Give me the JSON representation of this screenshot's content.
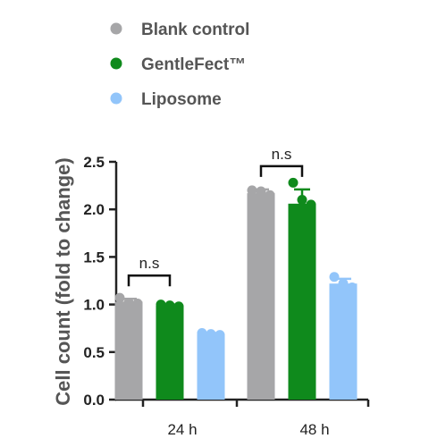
{
  "chart_data": {
    "type": "bar",
    "categories": [
      "24 h",
      "48 h"
    ],
    "ylabel": "Cell count (fold to change)",
    "xlabel": "",
    "ylim": [
      0,
      2.5
    ],
    "yticks": [
      "0.0",
      "0.5",
      "1.0",
      "1.5",
      "2.0",
      "2.5"
    ],
    "legend_position": "top-center",
    "series": [
      {
        "name": "Blank control",
        "color": "#a6a6a8",
        "values": [
          1.03,
          2.17
        ],
        "errors": [
          0.03,
          0.04
        ],
        "points": [
          [
            1.07,
            1.02,
            1.01
          ],
          [
            2.2,
            2.19,
            2.15
          ]
        ]
      },
      {
        "name": "GentleFect™",
        "color": "#0f8a1c",
        "values": [
          0.99,
          2.06
        ],
        "errors": [
          0.01,
          0.15
        ],
        "points": [
          [
            1.0,
            0.99,
            0.98
          ],
          [
            2.28,
            2.1,
            2.05
          ]
        ]
      },
      {
        "name": "Liposome",
        "color": "#92c5fa",
        "values": [
          0.69,
          1.22
        ],
        "errors": [
          0.01,
          0.05
        ],
        "points": [
          [
            0.7,
            0.69,
            0.68
          ],
          [
            1.29,
            1.22,
            1.18
          ]
        ]
      }
    ],
    "annotations": [
      {
        "text": "n.s",
        "category_index": 0,
        "from_series": 0,
        "to_series": 1
      },
      {
        "text": "n.s",
        "category_index": 1,
        "from_series": 0,
        "to_series": 1
      }
    ]
  }
}
